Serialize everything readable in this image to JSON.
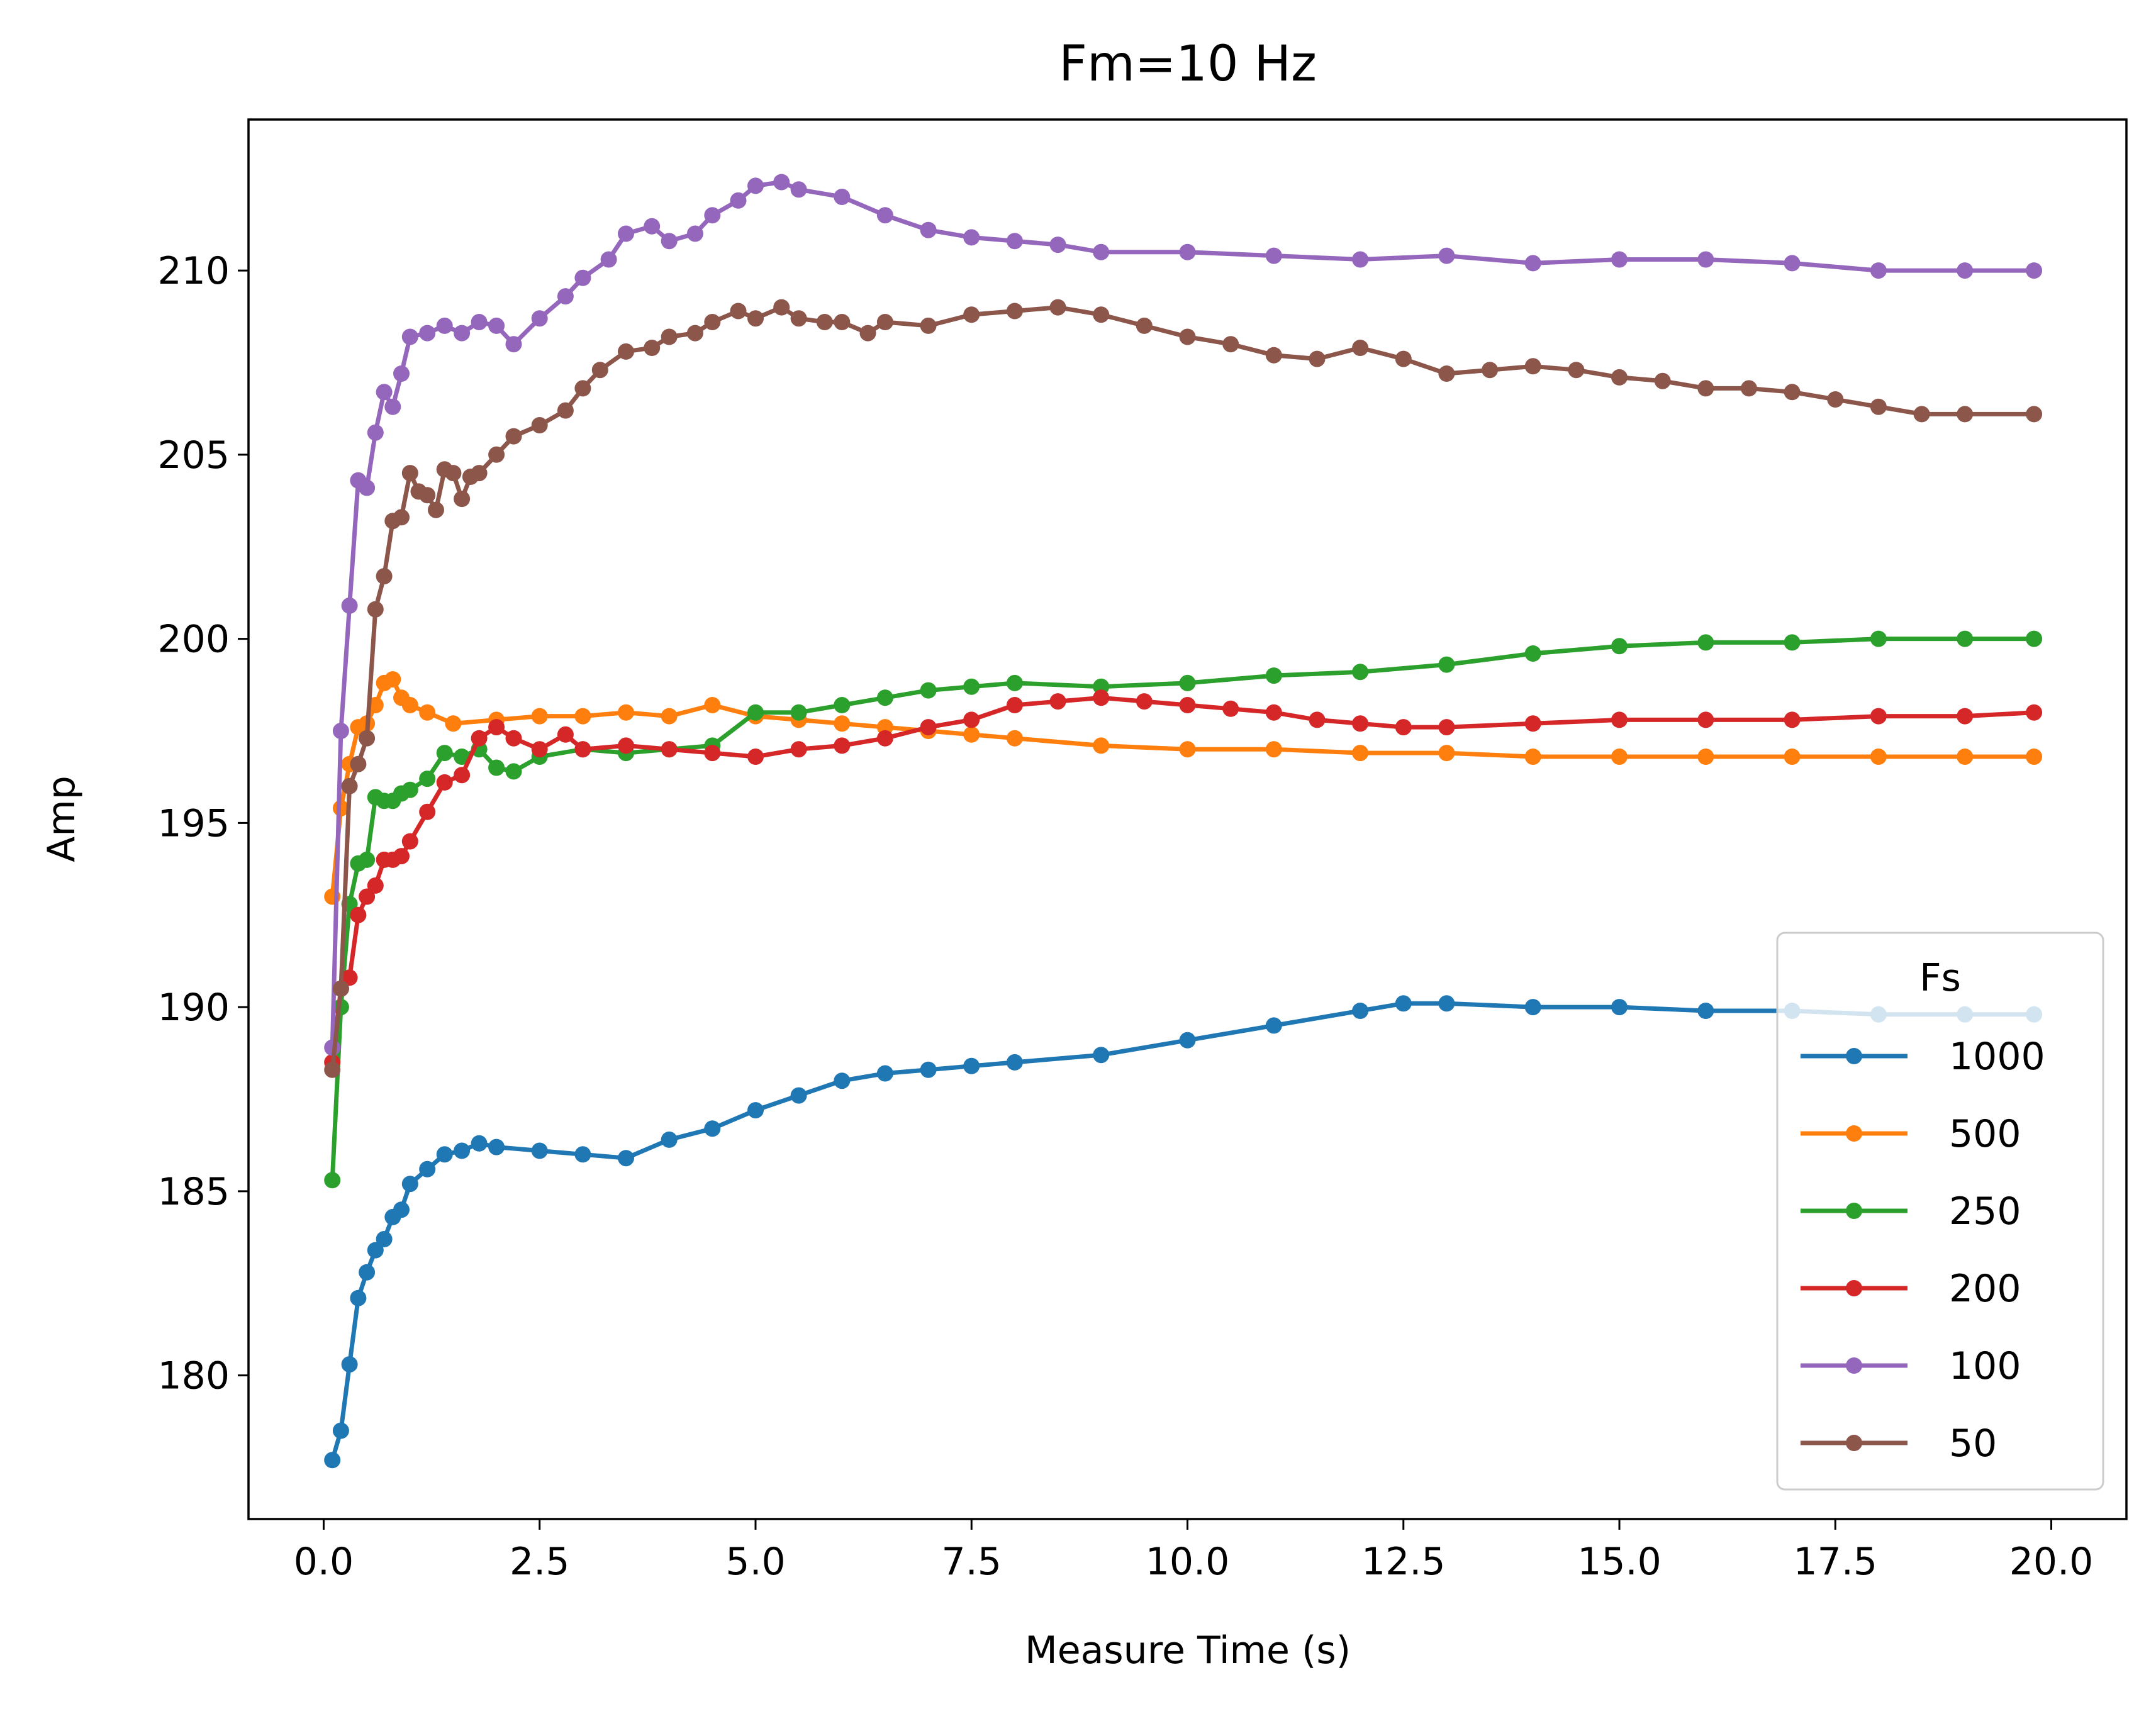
{
  "chart_data": {
    "type": "line",
    "title": "Fm=10 Hz",
    "xlabel": "Measure Time (s)",
    "ylabel": "Amp",
    "xlim": [
      -0.87,
      20.87
    ],
    "ylim": [
      176.1,
      214.1
    ],
    "xticks": [
      0.0,
      2.5,
      5.0,
      7.5,
      10.0,
      12.5,
      15.0,
      17.5,
      20.0
    ],
    "xtick_labels": [
      "0.0",
      "2.5",
      "5.0",
      "7.5",
      "10.0",
      "12.5",
      "15.0",
      "17.5",
      "20.0"
    ],
    "yticks": [
      180,
      185,
      190,
      195,
      200,
      205,
      210
    ],
    "ytick_labels": [
      "180",
      "185",
      "190",
      "195",
      "200",
      "205",
      "210"
    ],
    "grid": false,
    "marker": "circle",
    "legend": {
      "title": "Fs",
      "position": "lower right"
    },
    "series": [
      {
        "name": "1000",
        "color": "#1f77b4",
        "x": [
          0.1,
          0.2,
          0.3,
          0.4,
          0.5,
          0.6,
          0.7,
          0.8,
          0.9,
          1.0,
          1.2,
          1.4,
          1.6,
          1.8,
          2.0,
          2.5,
          3.0,
          3.5,
          4.0,
          4.5,
          5.0,
          5.5,
          6.0,
          6.5,
          7.0,
          7.5,
          8.0,
          9.0,
          10.0,
          11.0,
          12.0,
          12.5,
          13.0,
          14.0,
          15.0,
          16.0,
          17.0,
          18.0,
          19.0,
          19.8
        ],
        "y": [
          177.7,
          178.5,
          180.3,
          182.1,
          182.8,
          183.4,
          183.7,
          184.3,
          184.5,
          185.2,
          185.6,
          186.0,
          186.1,
          186.3,
          186.2,
          186.1,
          186.0,
          185.9,
          186.4,
          186.7,
          187.2,
          187.6,
          188.0,
          188.2,
          188.3,
          188.4,
          188.5,
          188.7,
          189.1,
          189.5,
          189.9,
          190.1,
          190.1,
          190.0,
          190.0,
          189.9,
          189.9,
          189.8,
          189.8,
          189.8
        ]
      },
      {
        "name": "500",
        "color": "#ff7f0e",
        "x": [
          0.1,
          0.2,
          0.3,
          0.4,
          0.5,
          0.6,
          0.7,
          0.8,
          0.9,
          1.0,
          1.2,
          1.5,
          2.0,
          2.5,
          3.0,
          3.5,
          4.0,
          4.5,
          5.0,
          5.5,
          6.0,
          6.5,
          7.0,
          7.5,
          8.0,
          9.0,
          10.0,
          11.0,
          12.0,
          13.0,
          14.0,
          15.0,
          16.0,
          17.0,
          18.0,
          19.0,
          19.8
        ],
        "y": [
          193.0,
          195.4,
          196.6,
          197.6,
          197.7,
          198.2,
          198.8,
          198.9,
          198.4,
          198.2,
          198.0,
          197.7,
          197.8,
          197.9,
          197.9,
          198.0,
          197.9,
          198.2,
          197.9,
          197.8,
          197.7,
          197.6,
          197.5,
          197.4,
          197.3,
          197.1,
          197.0,
          197.0,
          196.9,
          196.9,
          196.8,
          196.8,
          196.8,
          196.8,
          196.8,
          196.8,
          196.8
        ]
      },
      {
        "name": "250",
        "color": "#2ca02c",
        "x": [
          0.1,
          0.2,
          0.3,
          0.4,
          0.5,
          0.6,
          0.7,
          0.8,
          0.9,
          1.0,
          1.2,
          1.4,
          1.6,
          1.8,
          2.0,
          2.2,
          2.5,
          3.0,
          3.5,
          4.0,
          4.5,
          5.0,
          5.5,
          6.0,
          6.5,
          7.0,
          7.5,
          8.0,
          9.0,
          10.0,
          11.0,
          12.0,
          13.0,
          14.0,
          15.0,
          16.0,
          17.0,
          18.0,
          19.0,
          19.8
        ],
        "y": [
          185.3,
          190.0,
          192.8,
          193.9,
          194.0,
          195.7,
          195.6,
          195.6,
          195.8,
          195.9,
          196.2,
          196.9,
          196.8,
          197.0,
          196.5,
          196.4,
          196.8,
          197.0,
          196.9,
          197.0,
          197.1,
          198.0,
          198.0,
          198.2,
          198.4,
          198.6,
          198.7,
          198.8,
          198.7,
          198.8,
          199.0,
          199.1,
          199.3,
          199.6,
          199.8,
          199.9,
          199.9,
          200.0,
          200.0,
          200.0
        ]
      },
      {
        "name": "200",
        "color": "#d62728",
        "x": [
          0.1,
          0.2,
          0.3,
          0.4,
          0.5,
          0.6,
          0.7,
          0.8,
          0.9,
          1.0,
          1.2,
          1.4,
          1.6,
          1.8,
          2.0,
          2.2,
          2.5,
          2.8,
          3.0,
          3.5,
          4.0,
          4.5,
          5.0,
          5.5,
          6.0,
          6.5,
          7.0,
          7.5,
          8.0,
          8.5,
          9.0,
          9.5,
          10.0,
          10.5,
          11.0,
          11.5,
          12.0,
          12.5,
          13.0,
          14.0,
          15.0,
          16.0,
          17.0,
          18.0,
          19.0,
          19.8
        ],
        "y": [
          188.5,
          190.5,
          190.8,
          192.5,
          193.0,
          193.3,
          194.0,
          194.0,
          194.1,
          194.5,
          195.3,
          196.1,
          196.3,
          197.3,
          197.6,
          197.3,
          197.0,
          197.4,
          197.0,
          197.1,
          197.0,
          196.9,
          196.8,
          197.0,
          197.1,
          197.3,
          197.6,
          197.8,
          198.2,
          198.3,
          198.4,
          198.3,
          198.2,
          198.1,
          198.0,
          197.8,
          197.7,
          197.6,
          197.6,
          197.7,
          197.8,
          197.8,
          197.8,
          197.9,
          197.9,
          198.0
        ]
      },
      {
        "name": "100",
        "color": "#9467bd",
        "x": [
          0.1,
          0.2,
          0.3,
          0.4,
          0.5,
          0.6,
          0.7,
          0.8,
          0.9,
          1.0,
          1.2,
          1.4,
          1.6,
          1.8,
          2.0,
          2.2,
          2.5,
          2.8,
          3.0,
          3.3,
          3.5,
          3.8,
          4.0,
          4.3,
          4.5,
          4.8,
          5.0,
          5.3,
          5.5,
          6.0,
          6.5,
          7.0,
          7.5,
          8.0,
          8.5,
          9.0,
          10.0,
          11.0,
          12.0,
          13.0,
          14.0,
          15.0,
          16.0,
          17.0,
          18.0,
          19.0,
          19.8
        ],
        "y": [
          188.9,
          197.5,
          200.9,
          204.3,
          204.1,
          205.6,
          206.7,
          206.3,
          207.2,
          208.2,
          208.3,
          208.5,
          208.3,
          208.6,
          208.5,
          208.0,
          208.7,
          209.3,
          209.8,
          210.3,
          211.0,
          211.2,
          210.8,
          211.0,
          211.5,
          211.9,
          212.3,
          212.4,
          212.2,
          212.0,
          211.5,
          211.1,
          210.9,
          210.8,
          210.7,
          210.5,
          210.5,
          210.4,
          210.3,
          210.4,
          210.2,
          210.3,
          210.3,
          210.2,
          210.0,
          210.0,
          210.0
        ]
      },
      {
        "name": "50",
        "color": "#8c564b",
        "x": [
          0.1,
          0.2,
          0.3,
          0.4,
          0.5,
          0.6,
          0.7,
          0.8,
          0.9,
          1.0,
          1.1,
          1.2,
          1.3,
          1.4,
          1.5,
          1.6,
          1.7,
          1.8,
          2.0,
          2.2,
          2.5,
          2.8,
          3.0,
          3.2,
          3.5,
          3.8,
          4.0,
          4.3,
          4.5,
          4.8,
          5.0,
          5.3,
          5.5,
          5.8,
          6.0,
          6.3,
          6.5,
          7.0,
          7.5,
          8.0,
          8.5,
          9.0,
          9.5,
          10.0,
          10.5,
          11.0,
          11.5,
          12.0,
          12.5,
          13.0,
          13.5,
          14.0,
          14.5,
          15.0,
          15.5,
          16.0,
          16.5,
          17.0,
          17.5,
          18.0,
          18.5,
          19.0,
          19.8
        ],
        "y": [
          188.3,
          190.5,
          196.0,
          196.6,
          197.3,
          200.8,
          201.7,
          203.2,
          203.3,
          204.5,
          204.0,
          203.9,
          203.5,
          204.6,
          204.5,
          203.8,
          204.4,
          204.5,
          205.0,
          205.5,
          205.8,
          206.2,
          206.8,
          207.3,
          207.8,
          207.9,
          208.2,
          208.3,
          208.6,
          208.9,
          208.7,
          209.0,
          208.7,
          208.6,
          208.6,
          208.3,
          208.6,
          208.5,
          208.8,
          208.9,
          209.0,
          208.8,
          208.5,
          208.2,
          208.0,
          207.7,
          207.6,
          207.9,
          207.6,
          207.2,
          207.3,
          207.4,
          207.3,
          207.1,
          207.0,
          206.8,
          206.8,
          206.7,
          206.5,
          206.3,
          206.1,
          206.1,
          206.1
        ]
      }
    ]
  }
}
